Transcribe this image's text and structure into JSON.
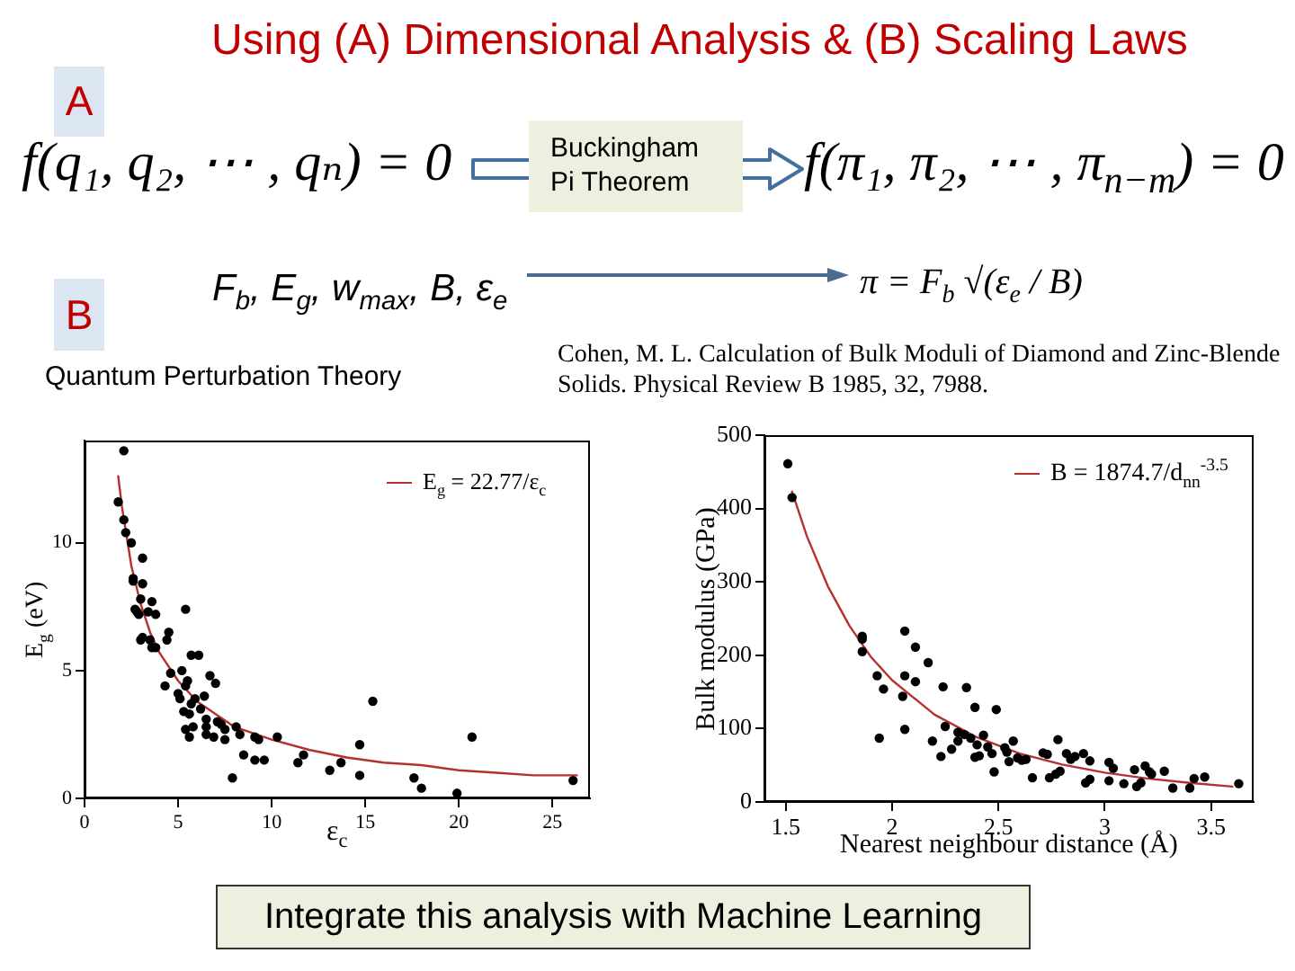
{
  "chart_data": [
    {
      "type": "other",
      "title": "Using (A) Dimensional Analysis & (B) Scaling Laws",
      "annotations": [
        "A",
        "f(q₁, q₂, ⋯ , qₙ) = 0",
        "Buckingham Pi Theorem",
        "f(π₁, π₂, ⋯ , π$_{n−m}$) = 0",
        "B",
        "F$_{b}$, E$_{g}$, w$_{max}$, B, ε$_{e}$",
        "π = F$_{b}$ √(ε$_{e}$ / B)",
        "Quantum Perturbation Theory",
        "Cohen, M. L. Calculation of Bulk Moduli of Diamond and Zinc-Blende Solids. Physical Review B 1985, 32, 7988."
      ]
    },
    {
      "type": "scatter",
      "xlabel": "ε$_{c}$",
      "ylabel": "E$_{g}$ (eV)",
      "xlim": [
        0,
        27
      ],
      "ylim": [
        0,
        14
      ],
      "xticks": [
        0,
        5,
        10,
        15,
        20,
        25
      ],
      "yticks": [
        0,
        5,
        10
      ],
      "legend": "top right",
      "marker": "circle",
      "series": [
        {
          "color": "#000000",
          "x": [
            2.1,
            1.8,
            2.1,
            2.2,
            2.5,
            3.1,
            2.6,
            2.6,
            3.1,
            3.0,
            2.7,
            2.8,
            2.9,
            3.4,
            3.6,
            3.8,
            3.1,
            3.0,
            3.5,
            3.6,
            3.8,
            4.5,
            4.4,
            5.4,
            5.7,
            6.1,
            4.3,
            4.6,
            5.2,
            5.0,
            5.1,
            5.5,
            5.4,
            6.7,
            7.0,
            5.7,
            5.9,
            6.4,
            5.3,
            5.6,
            6.2,
            6.5,
            6.5,
            7.1,
            7.3,
            7.5,
            5.4,
            5.6,
            5.8,
            6.5,
            6.9,
            7.5,
            8.1,
            8.3,
            9.1,
            9.3,
            8.5,
            9.1,
            9.6,
            7.9,
            10.3,
            11.4,
            11.7,
            13.1,
            13.7,
            14.7,
            14.7,
            15.4,
            17.6,
            18.0,
            19.9,
            20.7,
            26.1
          ],
          "values": [
            13.6,
            11.6,
            10.9,
            10.4,
            10.0,
            9.4,
            8.6,
            8.5,
            8.4,
            7.8,
            7.4,
            7.3,
            7.2,
            7.3,
            7.7,
            7.2,
            6.3,
            6.2,
            6.2,
            5.9,
            5.9,
            6.5,
            6.2,
            7.4,
            5.6,
            5.6,
            4.4,
            4.9,
            5.0,
            4.1,
            3.9,
            4.6,
            4.4,
            4.8,
            4.5,
            3.7,
            3.9,
            4.0,
            3.4,
            3.3,
            3.5,
            3.1,
            2.8,
            3.0,
            2.9,
            2.7,
            2.7,
            2.4,
            2.8,
            2.5,
            2.4,
            2.3,
            2.8,
            2.5,
            2.4,
            2.3,
            1.7,
            1.5,
            1.5,
            0.8,
            2.4,
            1.4,
            1.7,
            1.1,
            1.4,
            2.1,
            0.9,
            3.8,
            0.8,
            0.4,
            0.2,
            2.4,
            0.7
          ]
        },
        {
          "type": "line",
          "name": "E$_{g}$ = 22.77/ε$_{c}$",
          "color": "#b5302e",
          "marker": "none",
          "x": [
            1.8,
            2,
            2.5,
            3,
            3.5,
            4,
            5,
            6,
            7,
            8,
            10,
            12,
            14,
            16,
            18,
            20,
            22,
            24,
            26.3
          ],
          "values": [
            12.6,
            11.4,
            9.1,
            7.6,
            6.5,
            5.7,
            4.6,
            3.8,
            3.3,
            2.8,
            2.3,
            1.9,
            1.6,
            1.4,
            1.3,
            1.1,
            1.0,
            0.9,
            0.9
          ]
        }
      ]
    },
    {
      "type": "scatter",
      "xlabel": "Nearest neighbour distance (Å)",
      "ylabel": "Bulk modulus (GPa)",
      "xlim": [
        1.4,
        3.7
      ],
      "ylim": [
        0,
        500
      ],
      "xticks": [
        1.5,
        2,
        2.5,
        3,
        3.5
      ],
      "yticks": [
        0,
        100,
        200,
        300,
        400,
        500
      ],
      "legend": "top right",
      "marker": "circle",
      "series": [
        {
          "color": "#000000",
          "x": [
            1.51,
            1.53,
            1.86,
            1.86,
            1.86,
            1.93,
            1.96,
            1.94,
            2.06,
            2.11,
            2.06,
            2.11,
            2.17,
            2.05,
            2.06,
            2.24,
            2.35,
            2.39,
            2.49,
            2.19,
            2.25,
            2.23,
            2.28,
            2.31,
            2.34,
            2.37,
            2.31,
            2.4,
            2.43,
            2.39,
            2.41,
            2.45,
            2.47,
            2.48,
            2.53,
            2.57,
            2.54,
            2.55,
            2.59,
            2.61,
            2.63,
            2.66,
            2.71,
            2.73,
            2.78,
            2.74,
            2.77,
            2.79,
            2.82,
            2.86,
            2.9,
            2.93,
            2.84,
            2.91,
            2.93,
            3.02,
            3.04,
            3.02,
            3.09,
            3.14,
            3.15,
            3.17,
            3.19,
            3.21,
            3.22,
            3.28,
            3.32,
            3.4,
            3.42,
            3.47,
            3.63
          ],
          "values": [
            461,
            415,
            226,
            222,
            205,
            172,
            154,
            87,
            233,
            211,
            172,
            164,
            190,
            144,
            99,
            157,
            156,
            129,
            126,
            83,
            103,
            62,
            72,
            95,
            92,
            87,
            83,
            78,
            91,
            61,
            63,
            75,
            66,
            41,
            74,
            83,
            68,
            55,
            60,
            57,
            58,
            33,
            67,
            65,
            85,
            33,
            38,
            42,
            66,
            62,
            66,
            56,
            58,
            26,
            31,
            54,
            46,
            29,
            25,
            44,
            21,
            26,
            49,
            41,
            38,
            42,
            19,
            19,
            32,
            34,
            25
          ]
        },
        {
          "type": "line",
          "name": "B = 1874.7/d$_{nn}$$^{-3.5}$",
          "color": "#b5302e",
          "marker": "none",
          "x": [
            1.53,
            1.6,
            1.7,
            1.8,
            1.9,
            2.0,
            2.2,
            2.4,
            2.6,
            2.8,
            3.0,
            3.2,
            3.4,
            3.6
          ],
          "values": [
            423,
            362,
            293,
            240,
            198,
            166,
            119,
            88,
            66,
            51,
            40,
            32,
            26,
            21
          ]
        }
      ]
    },
    {
      "type": "other",
      "annotations": [
        "Integrate this analysis with Machine Learning"
      ]
    }
  ]
}
